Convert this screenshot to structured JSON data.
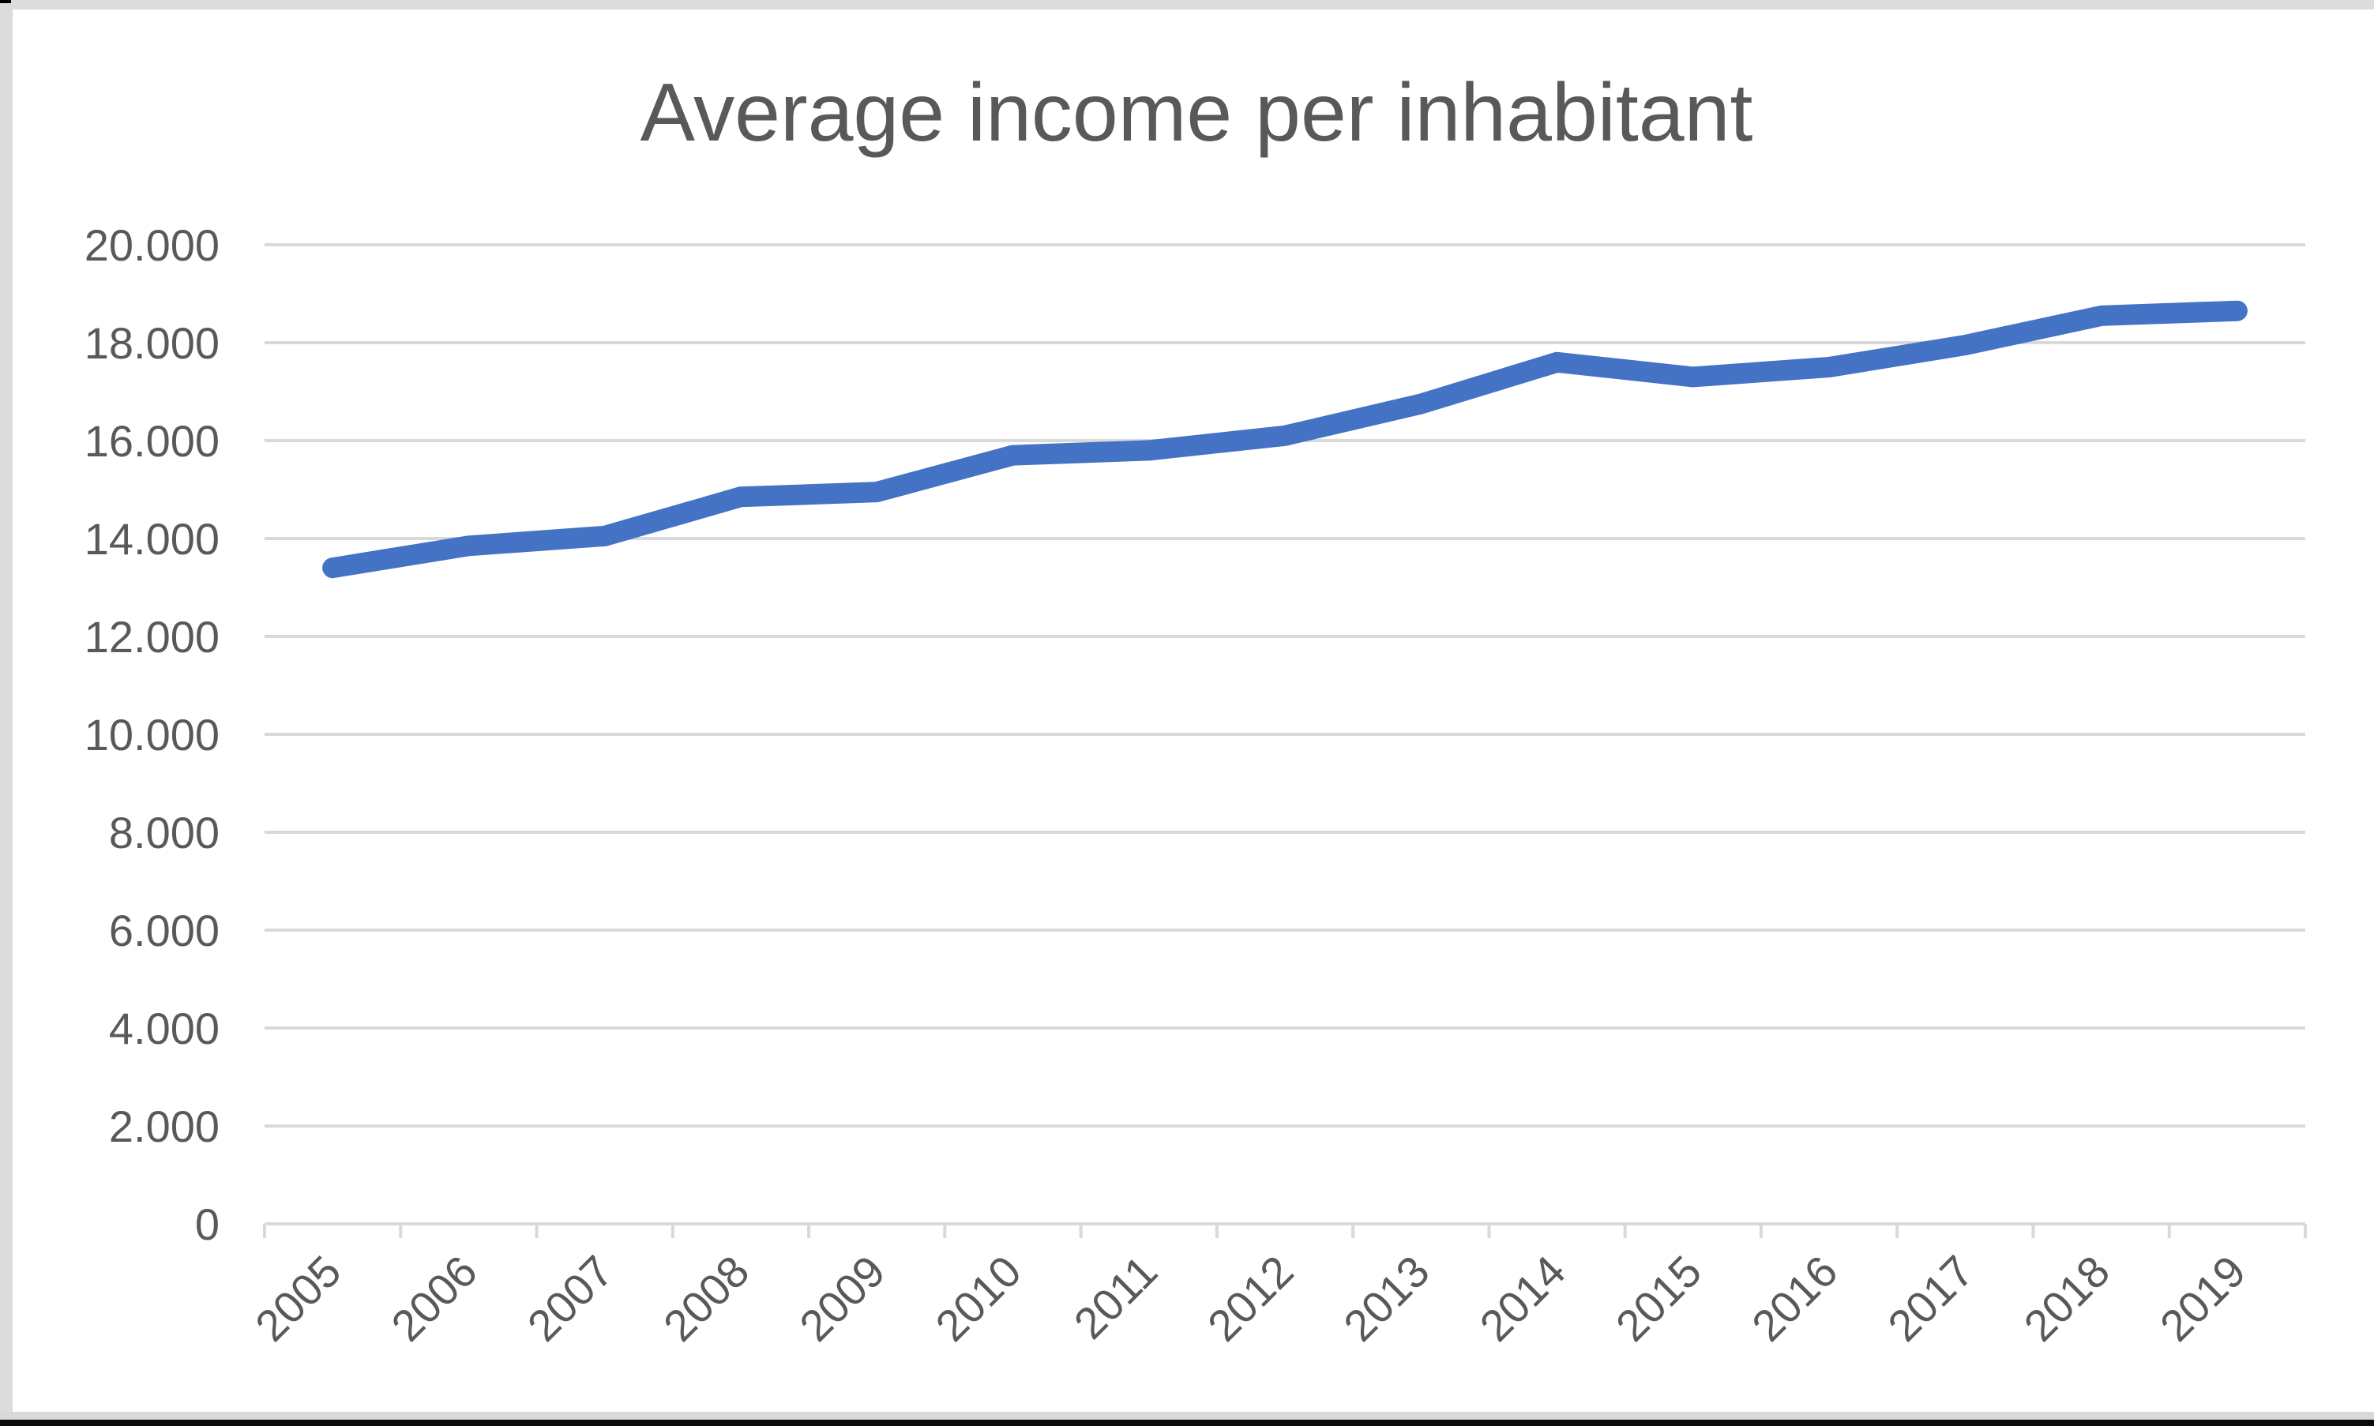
{
  "title": {
    "text": "Average income per inhabitant"
  },
  "chart_data": {
    "type": "line",
    "title": "Average income per inhabitant",
    "categories": [
      "2005",
      "2006",
      "2007",
      "2008",
      "2009",
      "2010",
      "2011",
      "2012",
      "2013",
      "2014",
      "2015",
      "2016",
      "2017",
      "2018",
      "2019"
    ],
    "series": [
      {
        "name": "Average income per inhabitant",
        "values": [
          13400,
          13850,
          14050,
          14850,
          14950,
          15700,
          15800,
          16100,
          16750,
          17600,
          17300,
          17500,
          17950,
          18550,
          18650
        ]
      }
    ],
    "xlabel": "",
    "ylabel": "",
    "ylim": [
      0,
      20000
    ],
    "ytick_step": 2000,
    "ytick_labels": [
      "0",
      "2.000",
      "4.000",
      "6.000",
      "8.000",
      "10.000",
      "12.000",
      "14.000",
      "16.000",
      "18.000",
      "20.000"
    ],
    "grid": true,
    "legend_position": "none",
    "colors": {
      "line": "#4472C4",
      "text": "#595959",
      "gridline": "#D9D9D9",
      "plot_background": "#FFFFFF",
      "margin_background": "#DCDCDC",
      "bottom_bar": "#0A0A0A"
    }
  }
}
